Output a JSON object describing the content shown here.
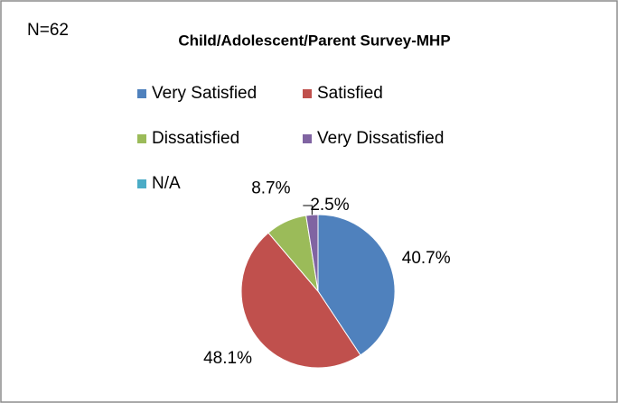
{
  "chart_data": {
    "type": "pie",
    "title": "Child/Adolescent/Parent Survey-MHP",
    "annotation": "N=62",
    "categories": [
      "Very Satisfied",
      "Satisfied",
      "Dissatisfied",
      "Very Dissatisfied",
      "N/A"
    ],
    "values": [
      40.7,
      48.1,
      8.7,
      2.5,
      0
    ],
    "value_labels": [
      "40.7%",
      "48.1%",
      "8.7%",
      "2.5%",
      null
    ],
    "colors": [
      "#4f81bd",
      "#c0504d",
      "#9bbb59",
      "#8064a2",
      "#4bacc6"
    ],
    "legend": "top"
  }
}
